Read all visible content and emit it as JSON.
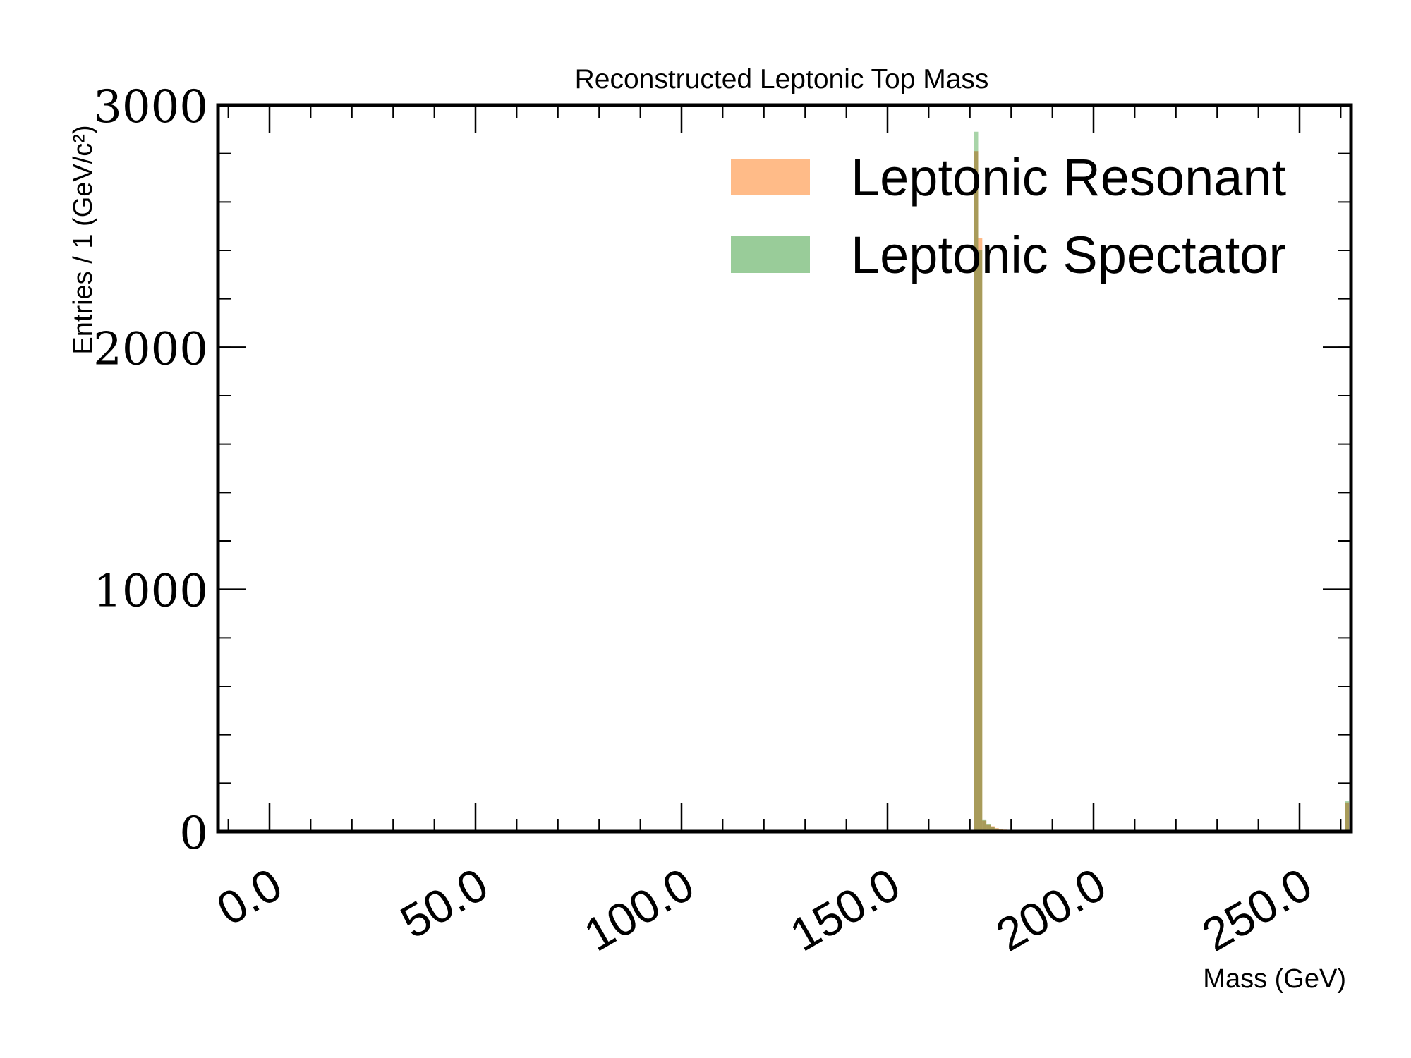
{
  "chart_data": {
    "type": "bar",
    "title": "Reconstructed Leptonic Top Mass",
    "xlabel": "Mass (GeV)",
    "ylabel": "Entries / 1 (GeV/c²)",
    "xlim": [
      -12.5,
      262.5
    ],
    "ylim": [
      0,
      3000
    ],
    "x_ticks": [
      0,
      50,
      100,
      150,
      200,
      250
    ],
    "x_tick_labels": [
      "0.0",
      "50.0",
      "100.0",
      "150.0",
      "200.0",
      "250.0"
    ],
    "y_ticks": [
      0,
      1000,
      2000,
      3000
    ],
    "y_tick_labels": [
      "0",
      "1000",
      "2000",
      "3000"
    ],
    "bin_width": 1,
    "grid": false,
    "legend_position": "top-right",
    "series": [
      {
        "name": "Leptonic Resonant",
        "color": "#ffbb88",
        "bins": [
          [
            171,
            2810
          ],
          [
            172,
            2450
          ],
          [
            173,
            45
          ],
          [
            174,
            30
          ],
          [
            175,
            22
          ],
          [
            176,
            14
          ],
          [
            177,
            10
          ],
          [
            178,
            8
          ],
          [
            179,
            6
          ],
          [
            180,
            5
          ],
          [
            181,
            4
          ],
          [
            182,
            3
          ],
          [
            183,
            3
          ],
          [
            184,
            2
          ],
          [
            185,
            2
          ],
          [
            186,
            2
          ],
          [
            187,
            1
          ],
          [
            188,
            1
          ],
          [
            189,
            1
          ],
          [
            190,
            1
          ],
          [
            261,
            120
          ]
        ]
      },
      {
        "name": "Leptonic Spectator",
        "color": "#99cc99",
        "bins": [
          [
            171,
            2890
          ],
          [
            172,
            2400
          ],
          [
            173,
            50
          ],
          [
            174,
            32
          ],
          [
            175,
            20
          ],
          [
            176,
            12
          ],
          [
            177,
            8
          ],
          [
            178,
            6
          ],
          [
            179,
            4
          ],
          [
            180,
            3
          ],
          [
            181,
            2
          ],
          [
            182,
            2
          ],
          [
            183,
            1
          ],
          [
            184,
            1
          ],
          [
            261,
            125
          ]
        ]
      }
    ]
  }
}
